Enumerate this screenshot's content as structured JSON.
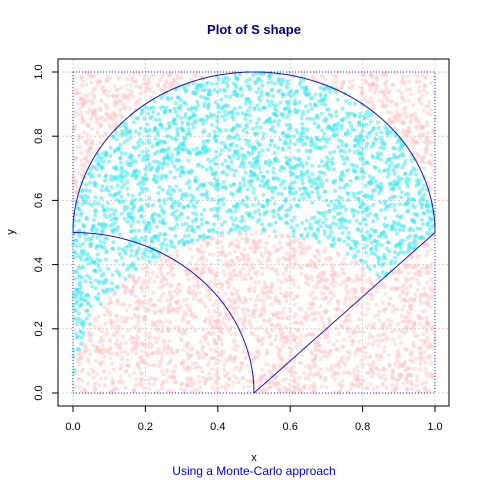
{
  "chart_data": {
    "type": "scatter",
    "title": "Plot of S shape",
    "subtitle": "Using a Monte-Carlo approach",
    "xlabel": "x",
    "ylabel": "y",
    "xlim": [
      0,
      1
    ],
    "ylim": [
      0,
      1
    ],
    "x_ticks": [
      "0.0",
      "0.2",
      "0.4",
      "0.6",
      "0.8",
      "1.0"
    ],
    "y_ticks": [
      "0.0",
      "0.2",
      "0.4",
      "0.6",
      "0.8",
      "1.0"
    ],
    "grid": true,
    "legend": "none",
    "colors": {
      "title": "#000080",
      "subtitle": "#0000cc",
      "outline": "#1a1aa6",
      "inside_points": "#3ee8f0",
      "outside_points": "#ffc0c0",
      "grid": "#d3d3d3"
    },
    "sample_count": 5000,
    "series": [
      {
        "values_description_free": true,
        "region": "inside"
      },
      {
        "region": "outside"
      }
    ],
    "shape": {
      "outer_arc": {
        "center": [
          0.5,
          0.5
        ],
        "radius": 0.5,
        "from_deg": 0,
        "to_deg": 180
      },
      "left_arc": {
        "center": [
          0.5,
          0.0
        ],
        "radius": 0.5,
        "from_deg": 180,
        "to_deg": 90
      },
      "segment": [
        [
          0.5,
          0.0
        ],
        [
          1.0,
          0.5
        ]
      ]
    }
  }
}
